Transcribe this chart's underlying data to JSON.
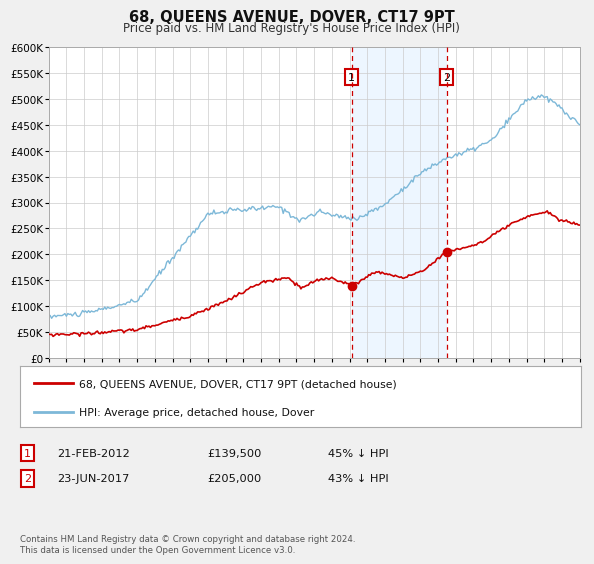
{
  "title": "68, QUEENS AVENUE, DOVER, CT17 9PT",
  "subtitle": "Price paid vs. HM Land Registry's House Price Index (HPI)",
  "xlim": [
    1995,
    2025
  ],
  "ylim": [
    0,
    600000
  ],
  "yticks": [
    0,
    50000,
    100000,
    150000,
    200000,
    250000,
    300000,
    350000,
    400000,
    450000,
    500000,
    550000,
    600000
  ],
  "ytick_labels": [
    "£0",
    "£50K",
    "£100K",
    "£150K",
    "£200K",
    "£250K",
    "£300K",
    "£350K",
    "£400K",
    "£450K",
    "£500K",
    "£550K",
    "£600K"
  ],
  "xticks": [
    1995,
    1996,
    1997,
    1998,
    1999,
    2000,
    2001,
    2002,
    2003,
    2004,
    2005,
    2006,
    2007,
    2008,
    2009,
    2010,
    2011,
    2012,
    2013,
    2014,
    2015,
    2016,
    2017,
    2018,
    2019,
    2020,
    2021,
    2022,
    2023,
    2024,
    2025
  ],
  "hpi_color": "#7db8d8",
  "price_color": "#cc0000",
  "vline_color": "#cc0000",
  "dot1_x": 2012.12,
  "dot1_y": 139500,
  "dot2_x": 2017.48,
  "dot2_y": 205000,
  "vline1_x": 2012.12,
  "vline2_x": 2017.48,
  "annotation1_label": "1",
  "annotation2_label": "2",
  "legend_label1": "68, QUEENS AVENUE, DOVER, CT17 9PT (detached house)",
  "legend_label2": "HPI: Average price, detached house, Dover",
  "table_row1": [
    "1",
    "21-FEB-2012",
    "£139,500",
    "45% ↓ HPI"
  ],
  "table_row2": [
    "2",
    "23-JUN-2017",
    "£205,000",
    "43% ↓ HPI"
  ],
  "footnote": "Contains HM Land Registry data © Crown copyright and database right 2024.\nThis data is licensed under the Open Government Licence v3.0.",
  "bg_color": "#f0f0f0",
  "plot_bg_color": "#ffffff",
  "grid_color": "#cccccc",
  "title_fontsize": 10.5,
  "subtitle_fontsize": 8.5,
  "annotation_box_color": "#cc0000",
  "shaded_color": "#ddeeff"
}
